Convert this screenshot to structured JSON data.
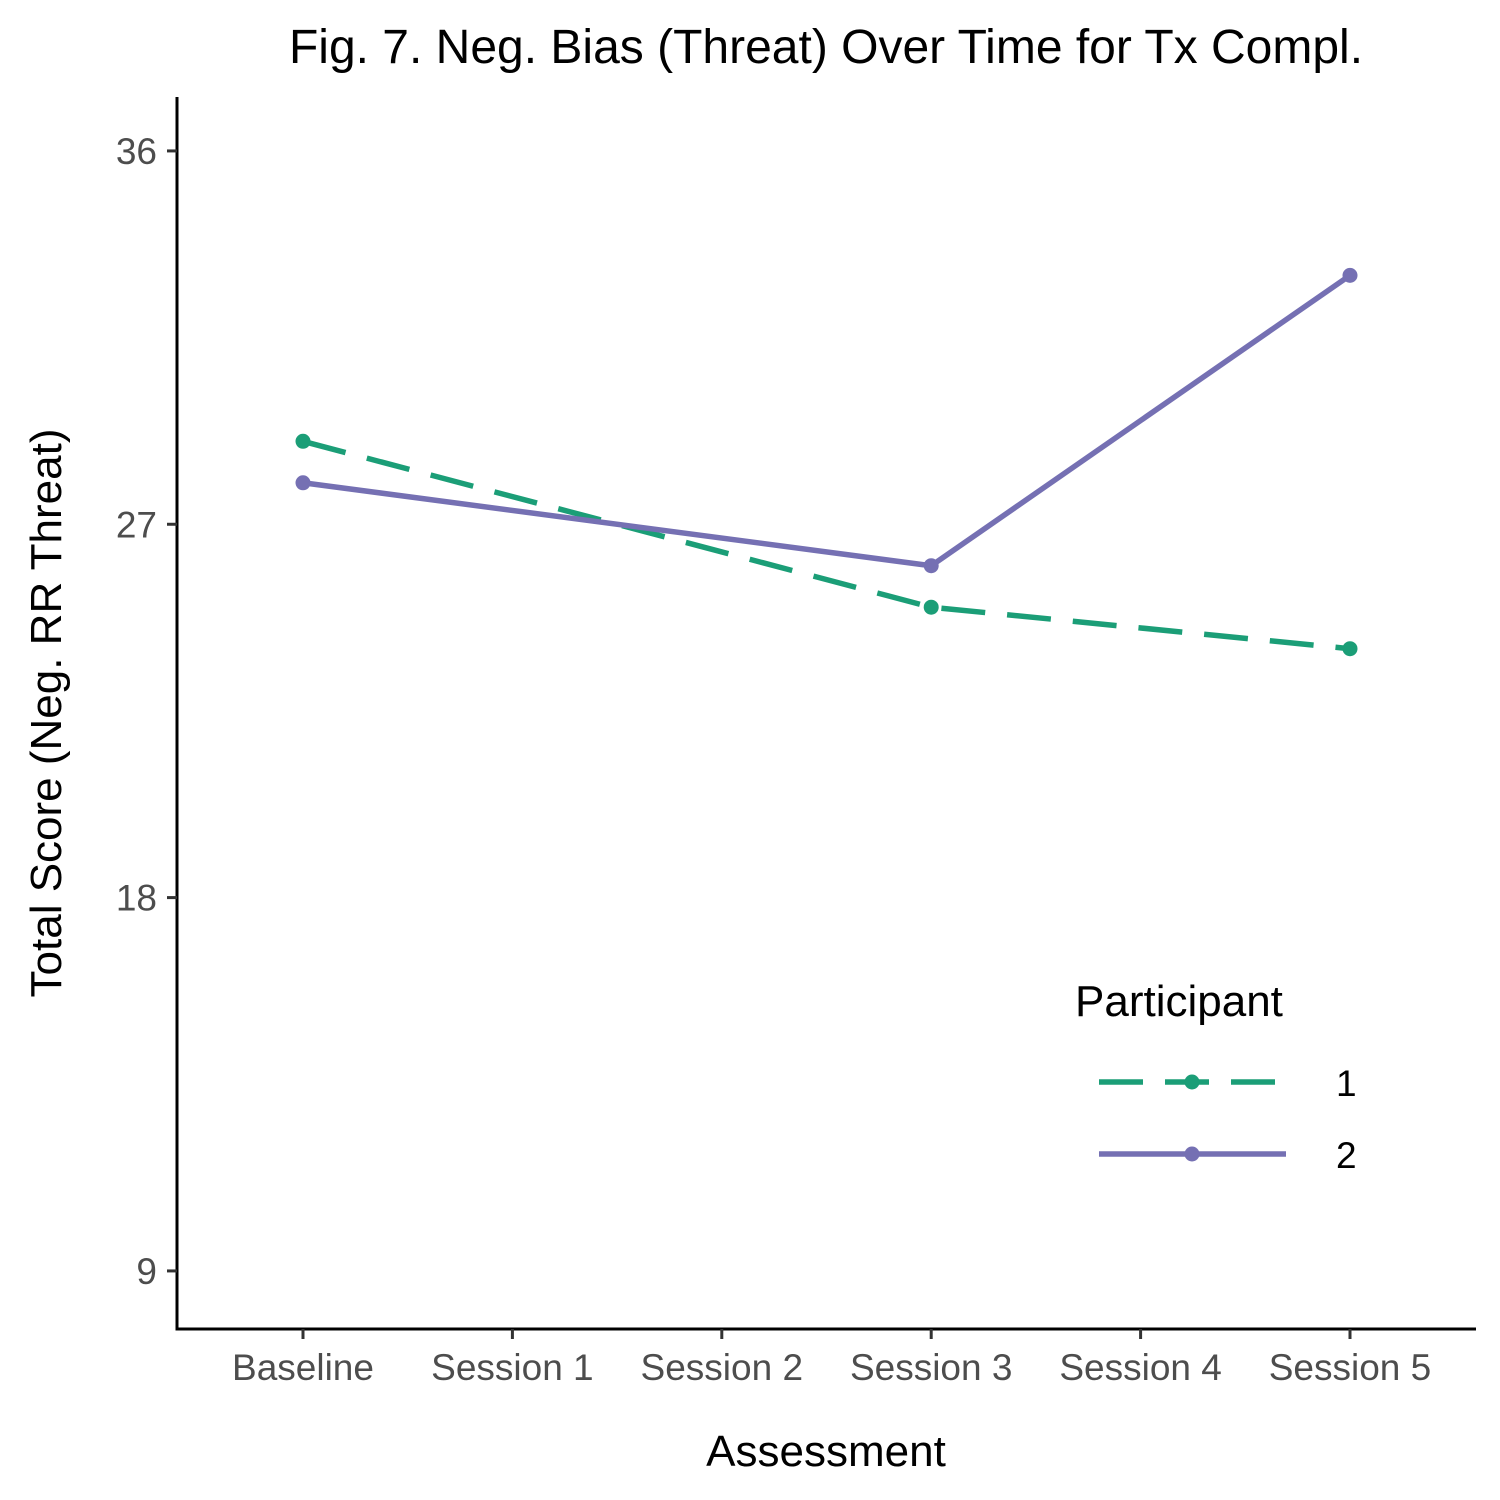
{
  "chart_data": {
    "type": "line",
    "title": "Fig. 7. Neg. Bias (Threat) Over Time for Tx Compl.",
    "xlabel": "Assessment",
    "ylabel": "Total Score (Neg. RR Threat)",
    "categories": [
      "Baseline",
      "Session 1",
      "Session 2",
      "Session 3",
      "Session 4",
      "Session 5"
    ],
    "y_ticks": [
      9,
      18,
      27,
      36
    ],
    "ylim": [
      7.6,
      37.3
    ],
    "grid": false,
    "legend": {
      "title": "Participant",
      "placement": "bottom-right"
    },
    "series": [
      {
        "name": "1",
        "color": "#1b9e77",
        "line_style": "dashed",
        "points": [
          {
            "category": "Baseline",
            "value": 29
          },
          {
            "category": "Session 3",
            "value": 25
          },
          {
            "category": "Session 5",
            "value": 24
          }
        ]
      },
      {
        "name": "2",
        "color": "#7570b3",
        "line_style": "solid",
        "points": [
          {
            "category": "Baseline",
            "value": 28
          },
          {
            "category": "Session 3",
            "value": 26
          },
          {
            "category": "Session 5",
            "value": 33
          }
        ]
      }
    ]
  }
}
